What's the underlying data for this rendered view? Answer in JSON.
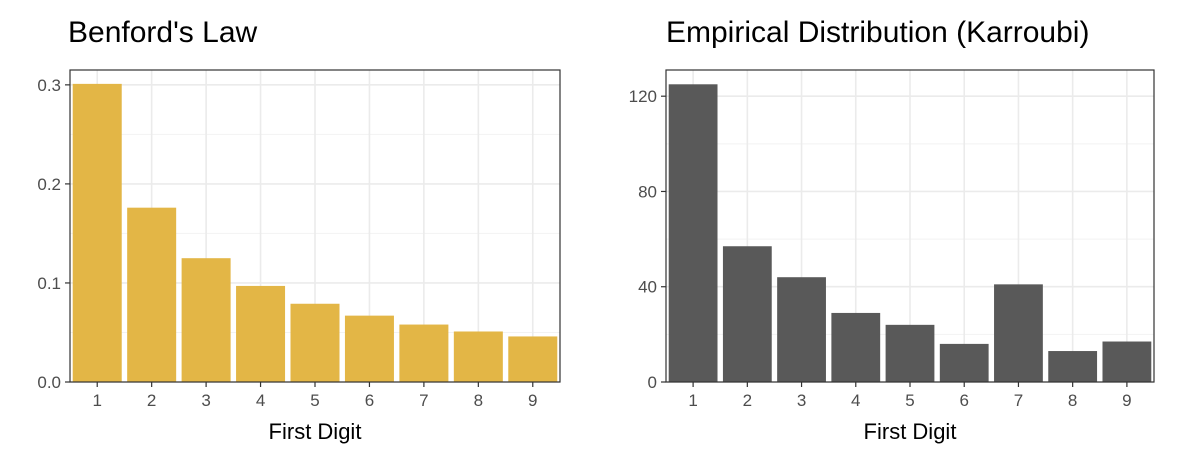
{
  "chart_data": [
    {
      "type": "bar",
      "title": "Benford's Law",
      "xlabel": "First Digit",
      "ylabel": "",
      "categories": [
        "1",
        "2",
        "3",
        "4",
        "5",
        "6",
        "7",
        "8",
        "9"
      ],
      "values": [
        0.301,
        0.176,
        0.125,
        0.097,
        0.079,
        0.067,
        0.058,
        0.051,
        0.046
      ],
      "ylim": [
        0,
        0.315
      ],
      "yticks": [
        "0.0",
        "0.1",
        "0.2",
        "0.3"
      ],
      "bar_color": "#E3B646",
      "grid": true
    },
    {
      "type": "bar",
      "title": "Empirical Distribution (Karroubi)",
      "xlabel": "First Digit",
      "ylabel": "",
      "categories": [
        "1",
        "2",
        "3",
        "4",
        "5",
        "6",
        "7",
        "8",
        "9"
      ],
      "values": [
        125,
        57,
        44,
        29,
        24,
        16,
        41,
        13,
        17
      ],
      "ylim": [
        0,
        131
      ],
      "yticks": [
        "0",
        "40",
        "80",
        "120"
      ],
      "bar_color": "#595959",
      "grid": true
    }
  ]
}
